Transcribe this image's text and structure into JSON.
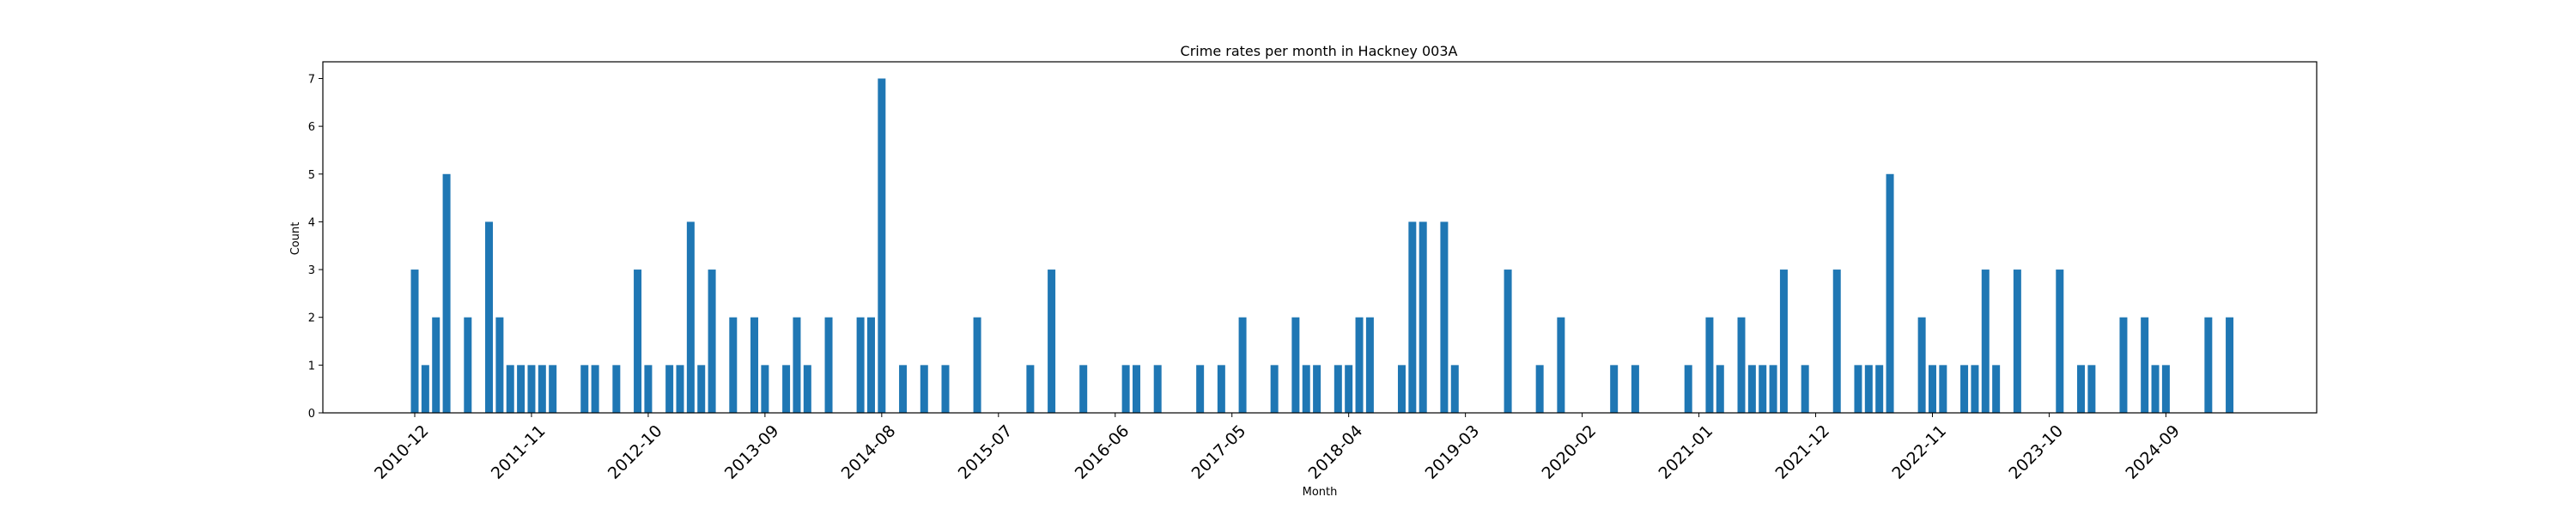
{
  "chart_data": {
    "type": "bar",
    "title": "Crime rates per month in Hackney 003A",
    "xlabel": "Month",
    "ylabel": "Count",
    "ylim": [
      0,
      7.35
    ],
    "yticks": [
      0,
      1,
      2,
      3,
      4,
      5,
      6,
      7
    ],
    "bar_color": "#1f77b4",
    "x_tick_labels": [
      "2010-12",
      "2011-11",
      "2012-10",
      "2013-09",
      "2014-08",
      "2015-07",
      "2016-06",
      "2017-05",
      "2018-04",
      "2019-03",
      "2020-02",
      "2021-01",
      "2021-12",
      "2022-11",
      "2023-10",
      "2024-09"
    ],
    "categories": [
      "2010-12",
      "2011-01",
      "2011-02",
      "2011-03",
      "2011-05",
      "2011-07",
      "2011-08",
      "2011-09",
      "2011-10",
      "2011-11",
      "2011-12",
      "2012-01",
      "2012-04",
      "2012-05",
      "2012-07",
      "2012-09",
      "2012-10",
      "2012-12",
      "2013-01",
      "2013-02",
      "2013-03",
      "2013-04",
      "2013-06",
      "2013-08",
      "2013-09",
      "2013-11",
      "2013-12",
      "2014-01",
      "2014-03",
      "2014-06",
      "2014-07",
      "2014-08",
      "2014-10",
      "2014-12",
      "2015-02",
      "2015-05",
      "2015-10",
      "2015-12",
      "2016-03",
      "2016-07",
      "2016-08",
      "2016-10",
      "2017-02",
      "2017-04",
      "2017-06",
      "2017-09",
      "2017-11",
      "2017-12",
      "2018-01",
      "2018-03",
      "2018-04",
      "2018-05",
      "2018-06",
      "2018-09",
      "2018-10",
      "2018-11",
      "2019-01",
      "2019-02",
      "2019-07",
      "2019-10",
      "2019-12",
      "2020-05",
      "2020-07",
      "2020-12",
      "2021-02",
      "2021-03",
      "2021-05",
      "2021-06",
      "2021-07",
      "2021-08",
      "2021-09",
      "2021-11",
      "2022-02",
      "2022-04",
      "2022-05",
      "2022-06",
      "2022-07",
      "2022-10",
      "2022-11",
      "2022-12",
      "2023-02",
      "2023-03",
      "2023-04",
      "2023-05",
      "2023-07",
      "2023-11",
      "2024-01",
      "2024-02",
      "2024-05",
      "2024-07",
      "2024-08",
      "2024-09",
      "2025-01",
      "2025-03"
    ],
    "values": [
      3,
      1,
      2,
      5,
      2,
      4,
      2,
      1,
      1,
      1,
      1,
      1,
      1,
      1,
      1,
      3,
      1,
      1,
      1,
      4,
      1,
      3,
      2,
      2,
      1,
      1,
      2,
      1,
      2,
      2,
      2,
      7,
      1,
      1,
      1,
      2,
      1,
      3,
      1,
      1,
      1,
      1,
      1,
      1,
      2,
      1,
      2,
      1,
      1,
      1,
      1,
      2,
      2,
      1,
      4,
      4,
      4,
      1,
      3,
      1,
      2,
      1,
      1,
      1,
      2,
      1,
      2,
      1,
      1,
      1,
      3,
      1,
      3,
      1,
      1,
      1,
      5,
      2,
      1,
      1,
      1,
      1,
      3,
      1,
      3,
      3,
      1,
      1,
      2,
      2,
      1,
      1,
      2,
      2
    ]
  }
}
